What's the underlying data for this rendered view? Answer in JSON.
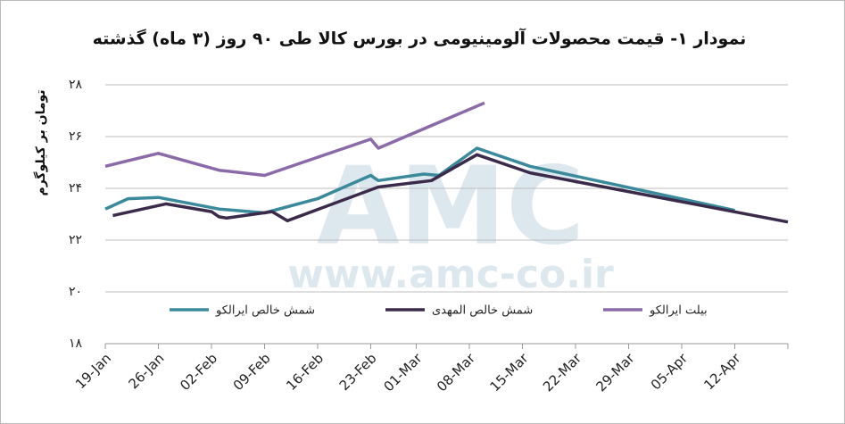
{
  "chart_data": {
    "type": "line",
    "title": "نمودار ۱- قیمت محصولات آلومینیومی در بورس کالا طی ۹۰ روز (۳ ماه) گذشته",
    "y_label": "تومان بر کیلوگرم",
    "watermark": {
      "logo": "AMC",
      "url": "www.amc-co.ir"
    },
    "xlim": [
      "19-Jan",
      "19-Apr"
    ],
    "xticks": [
      "19-Jan",
      "26-Jan",
      "02-Feb",
      "09-Feb",
      "16-Feb",
      "23-Feb",
      "01-Mar",
      "08-Mar",
      "15-Mar",
      "22-Mar",
      "29-Mar",
      "05-Apr",
      "12-Apr"
    ],
    "ylim": [
      18,
      28
    ],
    "yticks": [
      {
        "value": 18,
        "label": "۱۸"
      },
      {
        "value": 20,
        "label": "۲۰"
      },
      {
        "value": 22,
        "label": "۲۲"
      },
      {
        "value": 24,
        "label": "۲۴"
      },
      {
        "value": 26,
        "label": "۲۶"
      },
      {
        "value": 28,
        "label": "۲۸"
      }
    ],
    "grid": true,
    "legend": "bottom",
    "series": [
      {
        "name": "شمش خالص ایرالکو",
        "color": "#3a8a9c",
        "x": [
          "19-Jan",
          "22-Jan",
          "26-Jan",
          "03-Feb",
          "09-Feb",
          "16-Feb",
          "23-Feb",
          "24-Feb",
          "02-Mar",
          "04-Mar",
          "09-Mar",
          "16-Mar",
          "12-Apr"
        ],
        "values": [
          23.2,
          23.6,
          23.65,
          23.2,
          23.05,
          23.6,
          24.5,
          24.3,
          24.55,
          24.5,
          25.55,
          24.85,
          23.15
        ]
      },
      {
        "name": "شمش خالص المهدی",
        "color": "#3b2a4a",
        "x": [
          "20-Jan",
          "27-Jan",
          "02-Feb",
          "03-Feb",
          "04-Feb",
          "10-Feb",
          "12-Feb",
          "24-Feb",
          "03-Mar",
          "09-Mar",
          "16-Mar",
          "19-Apr"
        ],
        "values": [
          22.95,
          23.4,
          23.1,
          22.9,
          22.85,
          23.1,
          22.75,
          24.05,
          24.3,
          25.3,
          24.6,
          22.7
        ]
      },
      {
        "name": "بیلت ایرالکو",
        "color": "#8a6aa8",
        "x": [
          "19-Jan",
          "26-Jan",
          "03-Feb",
          "09-Feb",
          "23-Feb",
          "24-Feb",
          "10-Mar"
        ],
        "values": [
          24.85,
          25.35,
          24.7,
          24.5,
          25.9,
          25.55,
          27.3
        ]
      }
    ]
  }
}
